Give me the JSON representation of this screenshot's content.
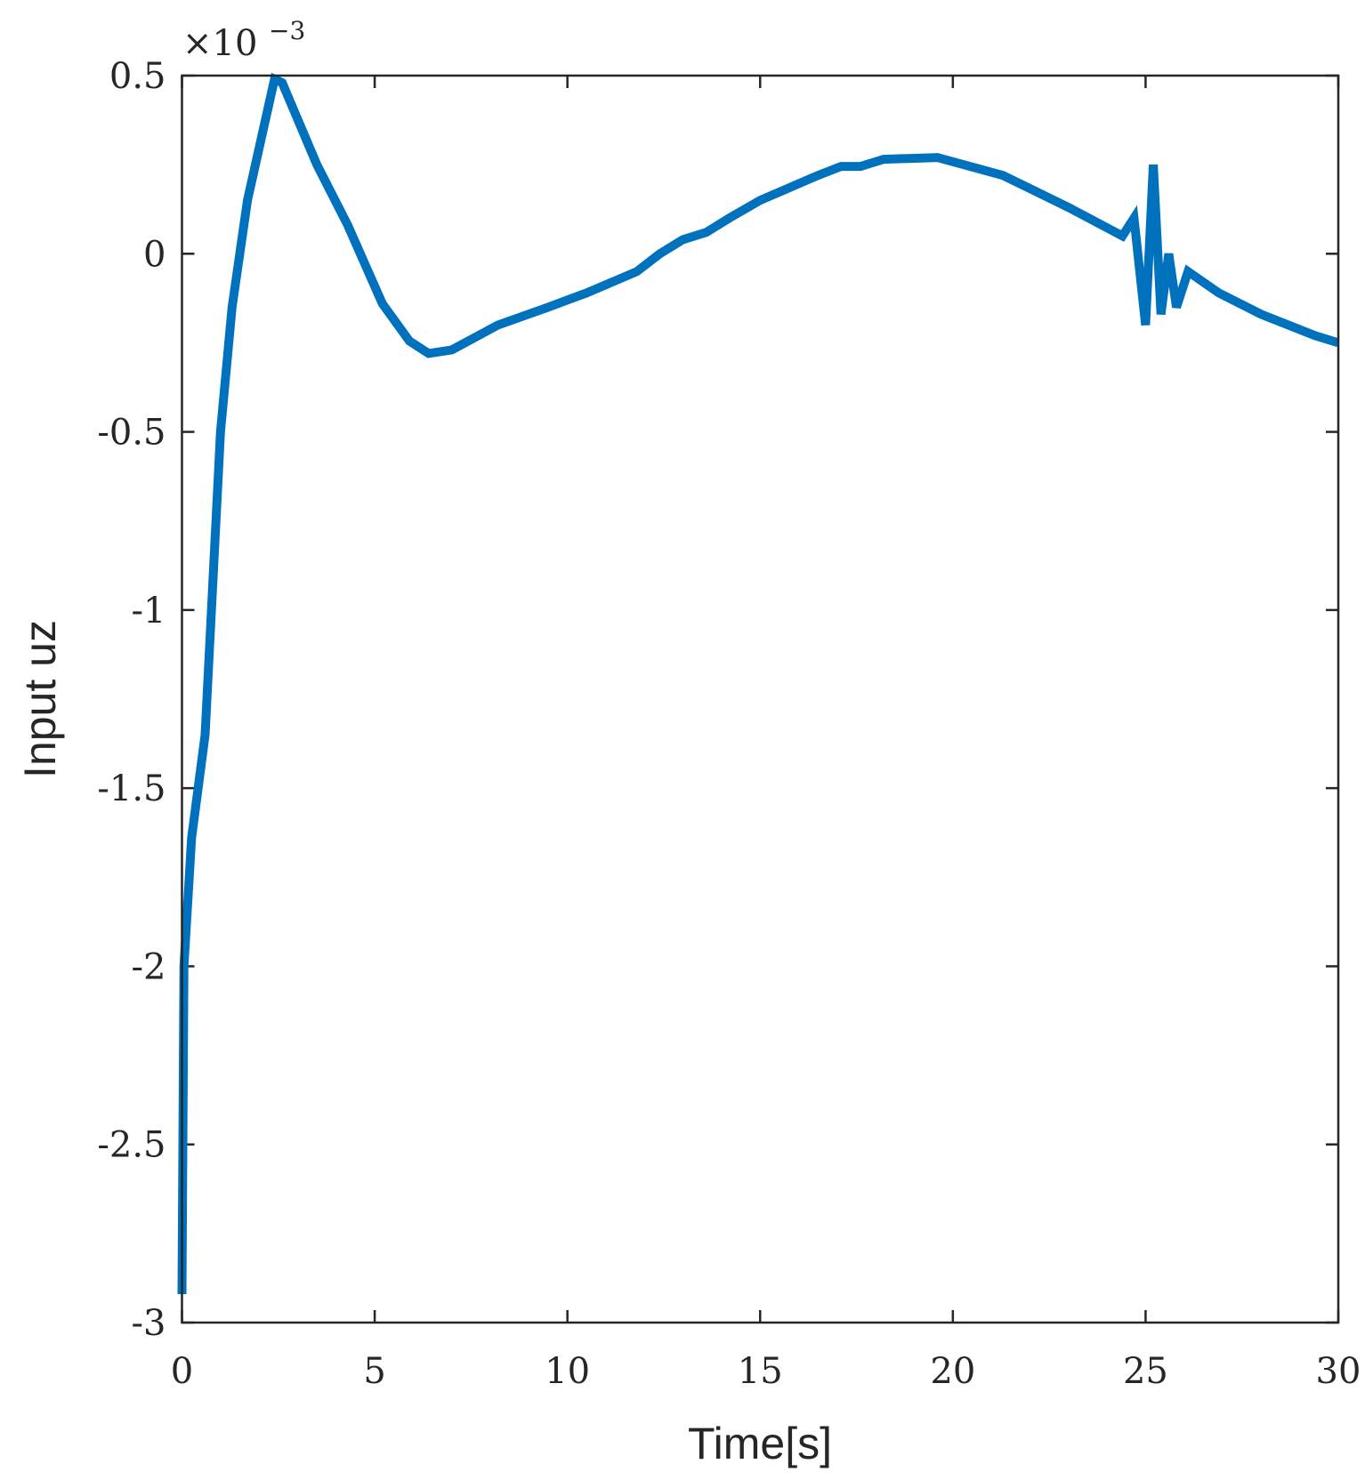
{
  "chart_data": {
    "type": "line",
    "x_label": "Time[s]",
    "y_label": "Input uz",
    "y_scale_base": "×10",
    "y_scale_exponent": "−3",
    "x": [
      0,
      0.05,
      0.25,
      0.6,
      1.0,
      1.3,
      1.7,
      2.4,
      2.6,
      3.5,
      4.3,
      5.2,
      5.9,
      6.4,
      7.0,
      8.2,
      9.5,
      10.5,
      11.8,
      12.4,
      13.0,
      13.6,
      14.2,
      15.0,
      16.5,
      17.1,
      17.6,
      18.2,
      19.6,
      21.3,
      23.0,
      24.4,
      24.7,
      25.0,
      25.2,
      25.4,
      25.6,
      25.8,
      26.1,
      26.9,
      28.0,
      29.4,
      30
    ],
    "series": [
      {
        "name": "uz",
        "color": "#0072bd",
        "values": [
          -2.92,
          -2.0,
          -1.64,
          -1.35,
          -0.5,
          -0.15,
          0.15,
          0.49,
          0.48,
          0.25,
          0.08,
          -0.14,
          -0.245,
          -0.28,
          -0.27,
          -0.2,
          -0.15,
          -0.11,
          -0.05,
          0.0,
          0.04,
          0.06,
          0.1,
          0.15,
          0.22,
          0.245,
          0.245,
          0.265,
          0.27,
          0.22,
          0.13,
          0.05,
          0.1,
          -0.2,
          0.25,
          -0.17,
          0.0,
          -0.15,
          -0.05,
          -0.11,
          -0.17,
          -0.23,
          -0.25
        ]
      }
    ],
    "xlim": [
      0,
      30
    ],
    "xticks": [
      0,
      5,
      10,
      15,
      20,
      25,
      30
    ],
    "ylim": [
      -3,
      0.5
    ],
    "yticks": [
      -3,
      -2.5,
      -2,
      -1.5,
      -1,
      -0.5,
      0,
      0.5
    ],
    "grid": false
  }
}
